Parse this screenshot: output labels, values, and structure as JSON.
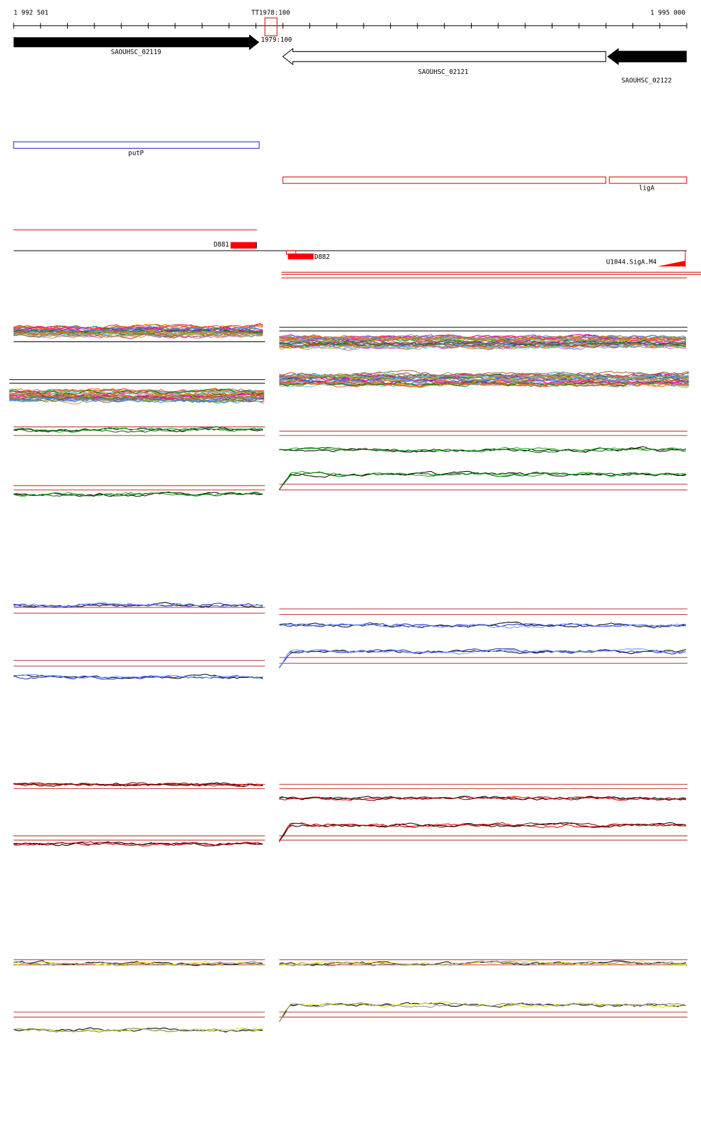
{
  "ruler": {
    "start": "1 992 501",
    "end": "1 995 000"
  },
  "markers": [
    "TT1978:100",
    "1979:100"
  ],
  "genes": [
    "SAOUHSC_02119",
    "SAOUHSC_02121",
    "SAOUHSC_02122"
  ],
  "features": {
    "putP": "putP",
    "ligA": "ligA",
    "D881": "D881",
    "D882": "D882",
    "sigA": "U1044.SigA.M4"
  }
}
